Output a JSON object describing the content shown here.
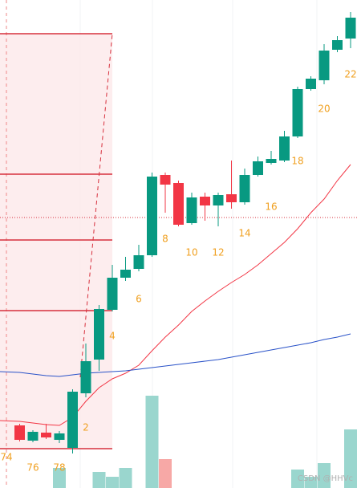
{
  "chart_data": {
    "type": "candlestick",
    "categories": [
      "74",
      null,
      "76",
      null,
      "78",
      null,
      "2",
      null,
      "4",
      null,
      "6",
      null,
      "8",
      null,
      "10",
      null,
      "12",
      null,
      "14",
      null,
      "16",
      null,
      "18",
      null,
      "20",
      null,
      "22"
    ],
    "open": [
      null,
      78,
      59,
      69,
      60,
      50,
      118,
      160,
      222,
      262,
      273,
      290,
      390,
      380,
      330,
      363,
      352,
      366,
      356,
      390,
      405,
      408,
      438,
      497,
      508,
      546,
      560
    ],
    "high": [
      null,
      80,
      72,
      80,
      71,
      123,
      180,
      228,
      278,
      288,
      303,
      393,
      393,
      383,
      368,
      368,
      368,
      408,
      398,
      413,
      420,
      445,
      500,
      513,
      553,
      563,
      593
    ],
    "low": [
      null,
      58,
      57,
      61,
      56,
      43,
      113,
      146,
      220,
      258,
      270,
      288,
      343,
      326,
      328,
      333,
      326,
      348,
      353,
      388,
      403,
      406,
      436,
      495,
      503,
      543,
      548
    ],
    "close": [
      null,
      60,
      70,
      63,
      68,
      120,
      158,
      223,
      262,
      272,
      290,
      388,
      378,
      328,
      362,
      352,
      365,
      356,
      390,
      407,
      410,
      438,
      497,
      510,
      545,
      558,
      586
    ],
    "volume": [
      null,
      null,
      null,
      null,
      25,
      null,
      null,
      20,
      14,
      25,
      null,
      115,
      36,
      null,
      null,
      null,
      null,
      null,
      null,
      null,
      null,
      null,
      23,
      14,
      31,
      null,
      73
    ],
    "moving_averages": [
      {
        "color": "#f23645",
        "values": [
          84,
          83,
          81,
          79,
          78,
          88,
          108,
          125,
          136,
          143,
          153,
          171,
          188,
          203,
          220,
          233,
          245,
          256,
          266,
          278,
          292,
          306,
          323,
          343,
          360,
          383,
          403
        ]
      },
      {
        "color": "#2952c8",
        "values": [
          145,
          144,
          142,
          140,
          139,
          141,
          143,
          144,
          145,
          146,
          148,
          150,
          152,
          154,
          156,
          158,
          160,
          163,
          166,
          169,
          172,
          175,
          178,
          181,
          185,
          188,
          192
        ]
      }
    ],
    "levels": [
      566,
      391,
      309,
      221,
      49
    ],
    "level_color": "#d7303d",
    "price_line": 337,
    "up_color": "#089981",
    "down_color": "#f23645",
    "volume_up_color": "#9ad6ce",
    "volume_down_color": "#f7a8a6",
    "label_color": "#f0a020",
    "ylim": [
      0,
      608
    ],
    "watermark": "CSDN @HHVc"
  }
}
